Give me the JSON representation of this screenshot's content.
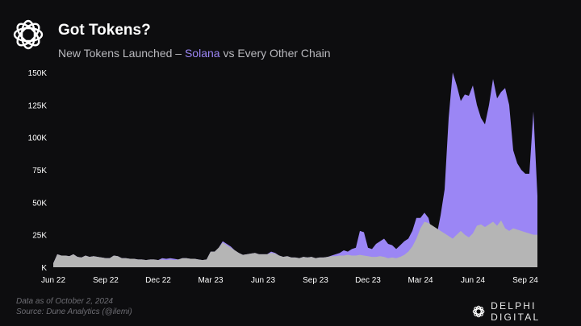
{
  "header": {
    "title": "Got Tokens?",
    "subtitle_prefix": "New Tokens Launched – ",
    "subtitle_highlight": "Solana",
    "subtitle_suffix": " vs Every Other Chain"
  },
  "footer": {
    "line1": "Data as of October 2, 2024",
    "line2": "Source: Dune Analytics (@ilemi)",
    "brand": "DELPHI DIGITAL"
  },
  "colors": {
    "background": "#0d0d0f",
    "solana": "#9b86f5",
    "other": "#b5b5b5",
    "text": "#ffffff",
    "muted": "#b9b9be"
  },
  "chart_data": {
    "type": "area",
    "stacked": false,
    "grid": false,
    "ylim": [
      0,
      150000
    ],
    "ytick_values": [
      0,
      25000,
      50000,
      75000,
      100000,
      125000,
      150000
    ],
    "ytick_labels": [
      "K",
      "25K",
      "50K",
      "75K",
      "100K",
      "125K",
      "150K"
    ],
    "xtick_labels": [
      "Jun 22",
      "Sep 22",
      "Dec 22",
      "Mar 23",
      "Jun 23",
      "Sep 23",
      "Dec 23",
      "Mar 24",
      "Jun 24",
      "Sep 24"
    ],
    "xtick_weeks": [
      0,
      13,
      26,
      39,
      52,
      65,
      78,
      91,
      104,
      117
    ],
    "x_start": "Jun 22",
    "series": [
      {
        "name": "Solana",
        "color": "#9b86f5",
        "values": [
          3000,
          10000,
          9000,
          9000,
          8500,
          10000,
          8000,
          7500,
          9000,
          8000,
          8500,
          8000,
          7500,
          7000,
          7000,
          9000,
          8500,
          7000,
          7000,
          6500,
          6500,
          6000,
          6000,
          5500,
          6000,
          6000,
          5500,
          7000,
          6500,
          7000,
          6500,
          6000,
          7000,
          7000,
          6500,
          6500,
          6000,
          5500,
          6000,
          12000,
          12000,
          15000,
          20000,
          18000,
          16000,
          13000,
          11000,
          9500,
          10000,
          10500,
          11000,
          10000,
          10000,
          10000,
          12000,
          11000,
          9000,
          8000,
          8500,
          7500,
          7500,
          7000,
          8000,
          7500,
          8000,
          7000,
          7500,
          7500,
          8000,
          9000,
          10000,
          11000,
          13000,
          12000,
          14000,
          15000,
          28000,
          27000,
          15000,
          14000,
          18000,
          20000,
          22000,
          18000,
          17000,
          14000,
          17000,
          20000,
          22000,
          28000,
          38000,
          38000,
          42000,
          38000,
          25000,
          24000,
          40000,
          60000,
          115000,
          150000,
          140000,
          128000,
          133000,
          132000,
          140000,
          125000,
          115000,
          110000,
          125000,
          145000,
          130000,
          135000,
          138000,
          125000,
          90000,
          80000,
          75000,
          72000,
          72000,
          120000,
          55000
        ]
      },
      {
        "name": "Every Other Chain",
        "color": "#b5b5b5",
        "values": [
          3000,
          10000,
          9000,
          9000,
          8500,
          10000,
          8000,
          7500,
          9000,
          8000,
          8500,
          8000,
          7500,
          7000,
          7000,
          9000,
          8500,
          7000,
          7000,
          6500,
          6500,
          6000,
          6000,
          5500,
          6000,
          6000,
          5500,
          6000,
          5500,
          6000,
          5500,
          6000,
          7000,
          7000,
          6500,
          6500,
          6000,
          5500,
          6000,
          12000,
          12000,
          15000,
          19000,
          17000,
          15000,
          13000,
          11000,
          9500,
          10000,
          10500,
          11000,
          10000,
          10000,
          10000,
          11000,
          10500,
          9000,
          8000,
          8500,
          7500,
          7500,
          7000,
          8000,
          7500,
          8000,
          7000,
          7500,
          7500,
          8000,
          8500,
          8500,
          9000,
          9000,
          9500,
          9000,
          9000,
          9500,
          9000,
          8500,
          8000,
          8000,
          8500,
          8000,
          7000,
          7500,
          7000,
          8000,
          9500,
          12000,
          16000,
          22000,
          30000,
          35000,
          34000,
          32000,
          30000,
          28000,
          26000,
          24000,
          22000,
          25000,
          28000,
          25000,
          23000,
          26000,
          32000,
          33000,
          31000,
          33000,
          35000,
          32000,
          36000,
          30000,
          28000,
          30000,
          29000,
          28000,
          27000,
          26000,
          25000,
          25000
        ]
      }
    ]
  }
}
